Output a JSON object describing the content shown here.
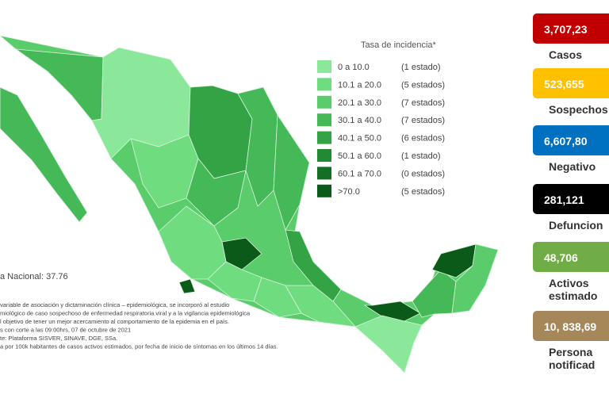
{
  "legend": {
    "title": "Tasa de incidencia*",
    "rows": [
      {
        "range": "0   a  10.0",
        "count": "(1 estado)",
        "color": "#8be89a"
      },
      {
        "range": "10.1 a  20.0",
        "count": "(5 estados)",
        "color": "#6fdc80"
      },
      {
        "range": "20.1 a  30.0",
        "count": "(7 estados)",
        "color": "#5acc6b"
      },
      {
        "range": "30.1 a  40.0",
        "count": "(7 estados)",
        "color": "#45b957"
      },
      {
        "range": "40.1 a  50.0",
        "count": "(6 estados)",
        "color": "#33a345"
      },
      {
        "range": "50.1 a  60.0",
        "count": "(1 estado)",
        "color": "#218a33"
      },
      {
        "range": "60.1 a  70.0",
        "count": "(0 estados)",
        "color": "#136f24"
      },
      {
        "range": ">70.0",
        "count": "(5 estados)",
        "color": "#0b5a19"
      }
    ]
  },
  "national": "a Nacional: 37.76",
  "notes": [
    "variable de asociación y dictaminación clínica – epidemiológica, se incorporó al estudio",
    "miológico de caso sospechoso de enfermedad respiratoria viral y a la vigilancia epidemiológica",
    "l objetivo de tener un mejor acercamiento al comportamiento de la epidemia en el país.",
    "s con corte a las 09:00hrs, 07 de octubre de 2021",
    "te: Plataforma SISVER, SINAVE, DGE, SSa.",
    "a por 100k habitantes de casos activos estimados, por fecha de inicio de síntomas en los últimos 14 días."
  ],
  "stats": [
    {
      "value": "3,707,23",
      "label": [
        "Casos"
      ],
      "color": "#c00000"
    },
    {
      "value": "523,655",
      "label": [
        "Sospechos"
      ],
      "color": "#ffc000"
    },
    {
      "value": "6,607,80",
      "label": [
        "Negativo"
      ],
      "color": "#0070c0"
    },
    {
      "value": "281,121",
      "label": [
        "Defuncion"
      ],
      "color": "#000000"
    },
    {
      "value": "48,706",
      "label": [
        "Activos",
        "estimado"
      ],
      "color": "#70ad47"
    },
    {
      "value": "10, 838,69",
      "label": [
        "Persona",
        "notificad"
      ],
      "color": "#a6875a"
    }
  ]
}
